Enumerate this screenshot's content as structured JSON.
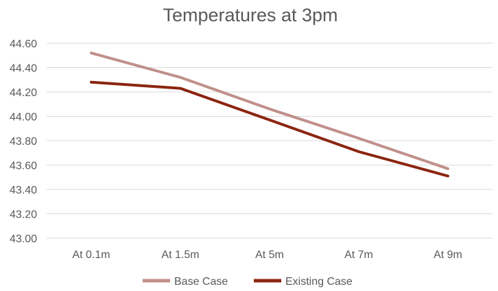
{
  "chart_data": {
    "type": "line",
    "title": "Temperatures at 3pm",
    "xlabel": "",
    "ylabel": "",
    "categories": [
      "At 0.1m",
      "At 1.5m",
      "At 5m",
      "At 7m",
      "At 9m"
    ],
    "ylim": [
      43.0,
      44.6
    ],
    "yticks": [
      "43.00",
      "43.20",
      "43.40",
      "43.60",
      "43.80",
      "44.00",
      "44.20",
      "44.40",
      "44.60"
    ],
    "grid": true,
    "legend_position": "bottom",
    "series": [
      {
        "name": "Base Case",
        "color": "#c0908a",
        "values": [
          44.52,
          44.32,
          44.06,
          43.82,
          43.57
        ]
      },
      {
        "name": "Existing Case",
        "color": "#8b2510",
        "values": [
          44.28,
          44.23,
          43.97,
          43.71,
          43.51
        ]
      }
    ]
  }
}
